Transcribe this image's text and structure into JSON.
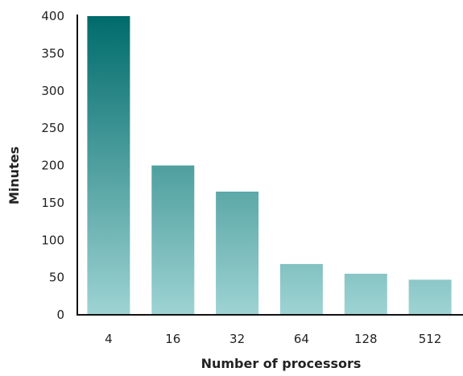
{
  "chart_data": {
    "type": "bar",
    "categories": [
      "4",
      "16",
      "32",
      "64",
      "128",
      "512"
    ],
    "values": [
      400,
      200,
      165,
      68,
      55,
      47
    ],
    "xlabel": "Number of processors",
    "ylabel": "Minutes",
    "ylim": [
      0,
      400
    ],
    "yticks": [
      0,
      50,
      100,
      150,
      200,
      250,
      300,
      350,
      400
    ],
    "grid": false,
    "legend": "none",
    "colors": {
      "bar_top_at_max": "#006b6b",
      "bar_bottom": "#9ed3d3",
      "axis": "#111111"
    }
  }
}
